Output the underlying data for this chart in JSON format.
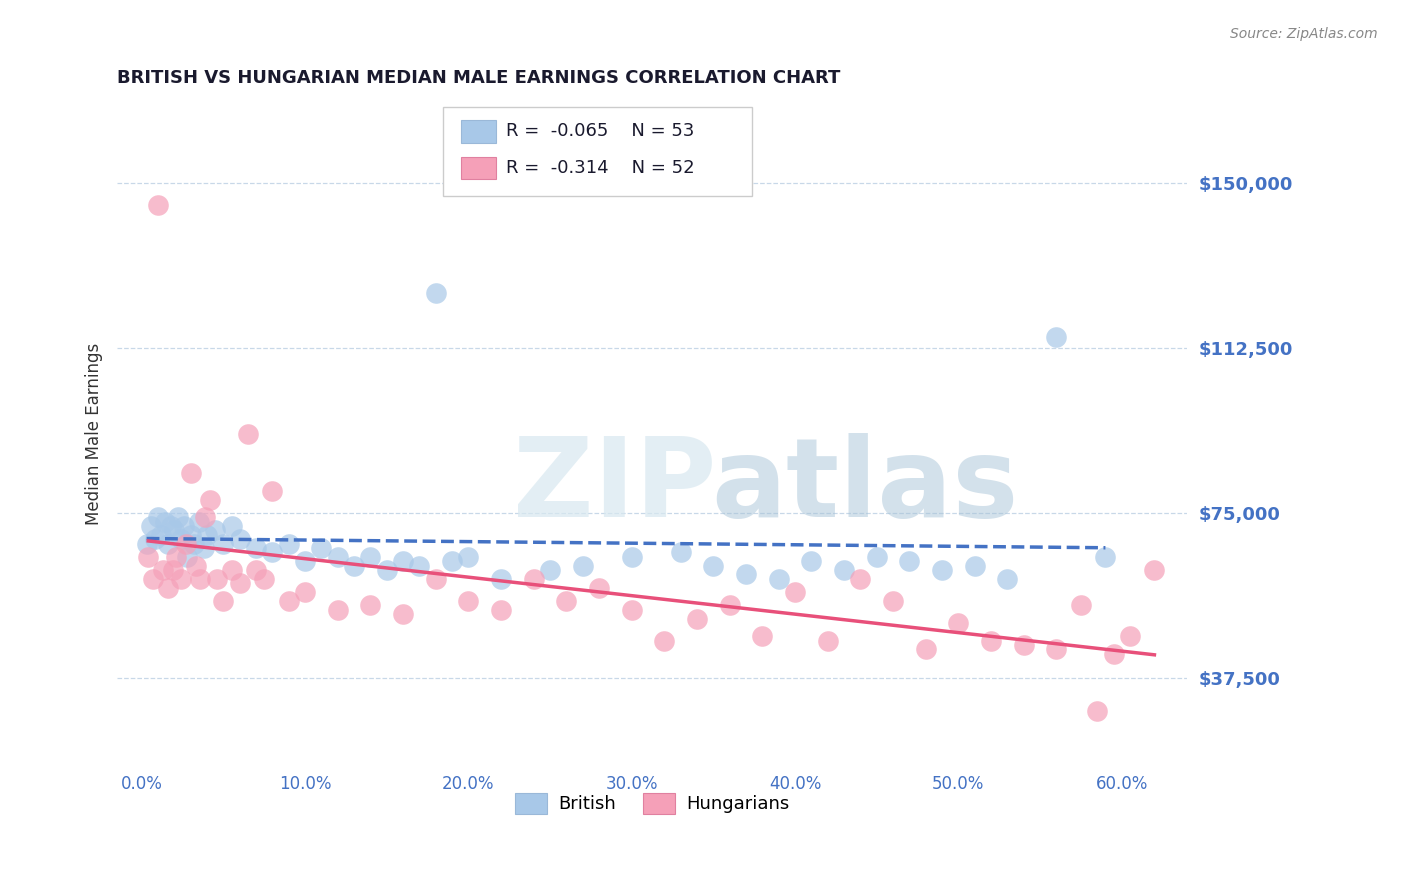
{
  "title": "BRITISH VS HUNGARIAN MEDIAN MALE EARNINGS CORRELATION CHART",
  "source": "Source: ZipAtlas.com",
  "ylabel": "Median Male Earnings",
  "xlabel_ticks": [
    "0.0%",
    "10.0%",
    "20.0%",
    "30.0%",
    "40.0%",
    "50.0%",
    "60.0%"
  ],
  "xlabel_vals": [
    0.0,
    10.0,
    20.0,
    30.0,
    40.0,
    50.0,
    60.0
  ],
  "yticks": [
    37500,
    75000,
    112500,
    150000
  ],
  "ytick_labels": [
    "$37,500",
    "$75,000",
    "$112,500",
    "$150,000"
  ],
  "ylim": [
    18000,
    168000
  ],
  "xlim": [
    -1.5,
    64.0
  ],
  "british_color": "#a8c8e8",
  "hungarian_color": "#f5a0b8",
  "british_line_color": "#4472c4",
  "hungarian_line_color": "#e8507a",
  "axis_color": "#4472c4",
  "legend_r_british": "R = -0.065",
  "legend_n_british": "N = 53",
  "legend_r_hungarian": "R = -0.314",
  "legend_n_hungarian": "N = 52",
  "british_x": [
    0.3,
    0.6,
    0.8,
    1.0,
    1.2,
    1.4,
    1.6,
    1.8,
    2.0,
    2.2,
    2.4,
    2.6,
    2.8,
    3.0,
    3.2,
    3.5,
    3.8,
    4.0,
    4.5,
    5.0,
    5.5,
    6.0,
    7.0,
    8.0,
    9.0,
    10.0,
    11.0,
    12.0,
    13.0,
    14.0,
    15.0,
    16.0,
    17.0,
    18.0,
    19.0,
    20.0,
    22.0,
    25.0,
    27.0,
    30.0,
    33.0,
    35.0,
    37.0,
    39.0,
    41.0,
    43.0,
    45.0,
    47.0,
    49.0,
    51.0,
    53.0,
    56.0,
    59.0
  ],
  "british_y": [
    68000,
    72000,
    69000,
    74000,
    70000,
    73000,
    68000,
    72000,
    71000,
    74000,
    69000,
    72000,
    65000,
    70000,
    68000,
    73000,
    67000,
    70000,
    71000,
    68000,
    72000,
    69000,
    67000,
    66000,
    68000,
    64000,
    67000,
    65000,
    63000,
    65000,
    62000,
    64000,
    63000,
    125000,
    64000,
    65000,
    60000,
    62000,
    63000,
    65000,
    66000,
    63000,
    61000,
    60000,
    64000,
    62000,
    65000,
    64000,
    62000,
    63000,
    60000,
    115000,
    65000
  ],
  "hungarian_x": [
    0.4,
    0.7,
    1.0,
    1.3,
    1.6,
    1.9,
    2.1,
    2.4,
    2.7,
    3.0,
    3.3,
    3.6,
    3.9,
    4.2,
    4.6,
    5.0,
    5.5,
    6.0,
    6.5,
    7.0,
    7.5,
    8.0,
    9.0,
    10.0,
    12.0,
    14.0,
    16.0,
    18.0,
    20.0,
    22.0,
    24.0,
    26.0,
    28.0,
    30.0,
    32.0,
    34.0,
    36.0,
    38.0,
    40.0,
    42.0,
    44.0,
    46.0,
    48.0,
    50.0,
    52.0,
    54.0,
    56.0,
    57.5,
    58.5,
    59.5,
    60.5,
    62.0
  ],
  "hungarian_y": [
    65000,
    60000,
    145000,
    62000,
    58000,
    62000,
    65000,
    60000,
    68000,
    84000,
    63000,
    60000,
    74000,
    78000,
    60000,
    55000,
    62000,
    59000,
    93000,
    62000,
    60000,
    80000,
    55000,
    57000,
    53000,
    54000,
    52000,
    60000,
    55000,
    53000,
    60000,
    55000,
    58000,
    53000,
    46000,
    51000,
    54000,
    47000,
    57000,
    46000,
    60000,
    55000,
    44000,
    50000,
    46000,
    45000,
    44000,
    54000,
    30000,
    43000,
    47000,
    62000
  ]
}
